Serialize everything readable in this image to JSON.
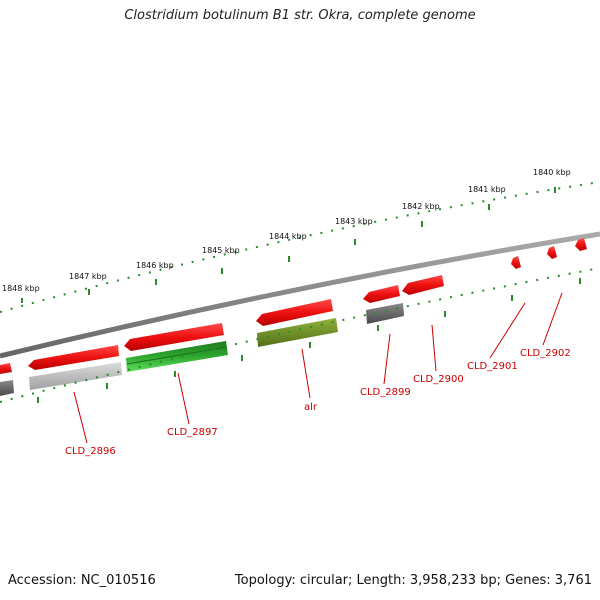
{
  "title": "Clostridium botulinum B1 str. Okra, complete genome",
  "footer": {
    "accession": "Accession: NC_010516",
    "summary": "Topology: circular; Length: 3,958,233 bp; Genes: 3,761"
  },
  "ticks_outer": [
    {
      "label": "1848 kbp"
    },
    {
      "label": "1847 kbp"
    },
    {
      "label": "1846 kbp"
    },
    {
      "label": "1845 kbp"
    },
    {
      "label": "1844 kbp"
    },
    {
      "label": "1843 kbp"
    },
    {
      "label": "1842 kbp"
    },
    {
      "label": "1841 kbp"
    },
    {
      "label": "1840 kbp"
    }
  ],
  "genes": [
    {
      "label": "CLD_2896"
    },
    {
      "label": "CLD_2897"
    },
    {
      "label": "alr"
    },
    {
      "label": "CLD_2899"
    },
    {
      "label": "CLD_2900"
    },
    {
      "label": "CLD_2901"
    },
    {
      "label": "CLD_2902"
    }
  ],
  "colors": {
    "gene_red": "#ee1111",
    "cds_gray": "#b8b8b8",
    "cds_dark": "#666666",
    "cds_green": "#2ea82e",
    "cds_olive": "#6e8e22",
    "backbone": "#888888",
    "tick_green": "#2a8a2a",
    "label_red": "#cc0000"
  }
}
